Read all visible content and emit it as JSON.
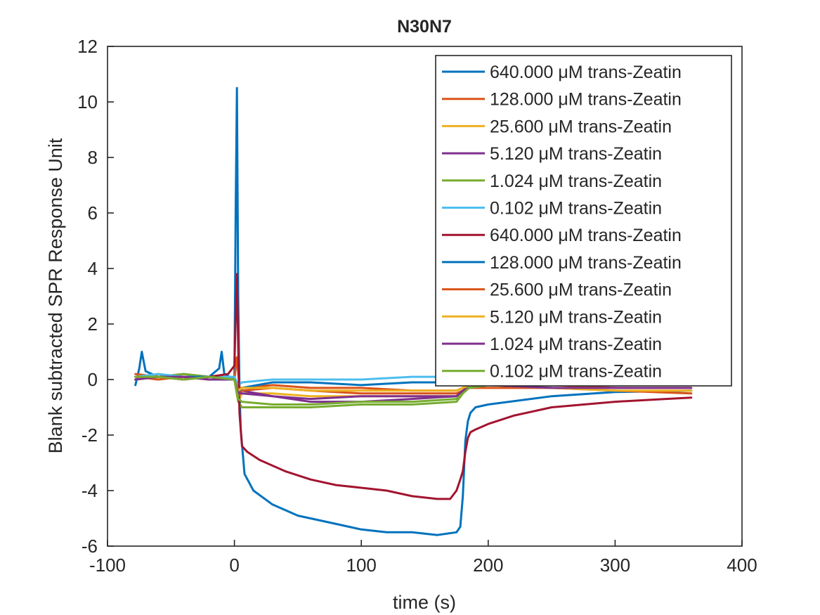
{
  "chart_data": {
    "type": "line",
    "title": "N30N7",
    "xlabel": "time (s)",
    "ylabel": "Blank subtracted SPR Response Unit",
    "xlim": [
      -100,
      400
    ],
    "ylim": [
      -6,
      12
    ],
    "xticks": [
      -100,
      0,
      100,
      200,
      300,
      400
    ],
    "yticks": [
      -6,
      -4,
      -2,
      0,
      2,
      4,
      6,
      8,
      10,
      12
    ],
    "xtick_labels": [
      "-100",
      "0",
      "100",
      "200",
      "300",
      "400"
    ],
    "ytick_labels": [
      "-6",
      "-4",
      "-2",
      "0",
      "2",
      "4",
      "6",
      "8",
      "10",
      "12"
    ],
    "grid": false,
    "legend_position": "top-right",
    "series": [
      {
        "name": "640.000 μM trans-Zeatin",
        "color": "#0072BD",
        "x": [
          -78,
          -75,
          -73,
          -70,
          -60,
          -40,
          -20,
          -12,
          -10,
          -8,
          0,
          1,
          2,
          3,
          4,
          5,
          8,
          15,
          30,
          50,
          80,
          100,
          120,
          140,
          160,
          175,
          178,
          180,
          182,
          184,
          186,
          190,
          200,
          250,
          300,
          360
        ],
        "y": [
          -0.2,
          0.4,
          1.0,
          0.3,
          0.1,
          0.0,
          0.1,
          0.4,
          1.0,
          0.2,
          0.0,
          6.0,
          10.5,
          3.0,
          -0.3,
          -1.8,
          -3.4,
          -4.0,
          -4.5,
          -4.9,
          -5.2,
          -5.4,
          -5.5,
          -5.5,
          -5.6,
          -5.5,
          -5.3,
          -4.2,
          -2.2,
          -1.5,
          -1.2,
          -1.0,
          -0.9,
          -0.6,
          -0.45,
          -0.4
        ]
      },
      {
        "name": "128.000 μM trans-Zeatin",
        "color": "#D95319",
        "x": [
          -78,
          -60,
          -40,
          -20,
          0,
          2,
          4,
          8,
          30,
          60,
          100,
          140,
          175,
          180,
          185,
          200,
          250,
          300,
          360
        ],
        "y": [
          0.2,
          0.1,
          0.2,
          0.1,
          0.0,
          0.8,
          -0.3,
          -0.3,
          -0.2,
          -0.3,
          -0.3,
          -0.4,
          -0.4,
          -0.3,
          -0.2,
          -0.2,
          -0.2,
          -0.3,
          -0.3
        ]
      },
      {
        "name": "25.600 μM trans-Zeatin",
        "color": "#EDB120",
        "x": [
          -78,
          -60,
          -40,
          -20,
          0,
          3,
          6,
          30,
          60,
          100,
          140,
          175,
          180,
          185,
          200,
          250,
          300,
          360
        ],
        "y": [
          0.1,
          0.2,
          0.1,
          0.1,
          0.0,
          -0.8,
          -0.5,
          -0.5,
          -0.6,
          -0.6,
          -0.6,
          -0.6,
          -0.4,
          -0.2,
          -0.1,
          -0.1,
          -0.2,
          -0.1
        ]
      },
      {
        "name": "5.120 μM trans-Zeatin",
        "color": "#7E2F8E",
        "x": [
          -78,
          -60,
          -40,
          -20,
          0,
          3,
          6,
          30,
          60,
          100,
          140,
          175,
          180,
          185,
          200,
          250,
          300,
          360
        ],
        "y": [
          0.0,
          0.1,
          0.1,
          0.0,
          0.0,
          -0.3,
          -0.4,
          -0.6,
          -0.8,
          -0.8,
          -0.7,
          -0.6,
          -0.4,
          -0.2,
          -0.1,
          -0.1,
          -0.1,
          -0.1
        ]
      },
      {
        "name": "1.024 μM trans-Zeatin",
        "color": "#77AC30",
        "x": [
          -78,
          -60,
          -40,
          -20,
          0,
          3,
          6,
          30,
          60,
          100,
          140,
          175,
          180,
          185,
          200,
          250,
          300,
          360
        ],
        "y": [
          0.1,
          0.1,
          0.2,
          0.1,
          0.0,
          -0.8,
          -1.0,
          -1.0,
          -1.0,
          -0.9,
          -0.9,
          -0.8,
          -0.5,
          -0.2,
          -0.1,
          -0.1,
          -0.2,
          -0.2
        ]
      },
      {
        "name": "0.102 μM trans-Zeatin",
        "color": "#4DBEEE",
        "x": [
          -78,
          -60,
          -40,
          -20,
          0,
          3,
          6,
          30,
          60,
          100,
          140,
          175,
          180,
          185,
          200,
          250,
          300,
          360
        ],
        "y": [
          0.1,
          0.2,
          0.1,
          0.1,
          0.1,
          -0.2,
          -0.1,
          0.0,
          0.0,
          0.0,
          0.1,
          0.1,
          0.1,
          0.0,
          0.0,
          0.0,
          -0.1,
          -0.1
        ]
      },
      {
        "name": "640.000 μM trans-Zeatin",
        "color": "#A2142F",
        "x": [
          -78,
          -60,
          -40,
          -20,
          -5,
          0,
          1,
          2,
          3,
          4,
          6,
          10,
          20,
          40,
          60,
          80,
          100,
          120,
          140,
          160,
          170,
          175,
          178,
          180,
          182,
          184,
          186,
          190,
          200,
          220,
          250,
          300,
          340,
          360
        ],
        "y": [
          0.0,
          0.1,
          0.0,
          0.1,
          0.2,
          0.5,
          2.2,
          3.8,
          1.2,
          -1.2,
          -2.4,
          -2.6,
          -2.9,
          -3.3,
          -3.6,
          -3.8,
          -3.9,
          -4.0,
          -4.2,
          -4.3,
          -4.3,
          -4.0,
          -3.6,
          -3.3,
          -2.6,
          -2.1,
          -1.9,
          -1.8,
          -1.6,
          -1.3,
          -1.0,
          -0.8,
          -0.7,
          -0.65
        ]
      },
      {
        "name": "128.000 μM trans-Zeatin",
        "color": "#0072BD",
        "x": [
          -78,
          -60,
          -40,
          -20,
          0,
          3,
          6,
          30,
          60,
          100,
          140,
          175,
          180,
          185,
          200,
          250,
          300,
          360
        ],
        "y": [
          0.0,
          0.1,
          0.1,
          0.1,
          0.0,
          -0.5,
          -0.3,
          -0.1,
          -0.1,
          -0.2,
          -0.1,
          -0.1,
          0.0,
          0.0,
          0.0,
          -0.1,
          -0.1,
          -0.1
        ]
      },
      {
        "name": "25.600 μM trans-Zeatin",
        "color": "#D95319",
        "x": [
          -78,
          -60,
          -40,
          -20,
          0,
          3,
          6,
          30,
          60,
          100,
          140,
          175,
          180,
          185,
          200,
          250,
          300,
          360
        ],
        "y": [
          0.1,
          0.0,
          0.1,
          0.0,
          0.0,
          -0.6,
          -0.4,
          -0.3,
          -0.4,
          -0.5,
          -0.5,
          -0.5,
          -0.4,
          -0.3,
          -0.3,
          -0.3,
          -0.4,
          -0.5
        ]
      },
      {
        "name": "5.120 μM trans-Zeatin",
        "color": "#EDB120",
        "x": [
          -78,
          -60,
          -40,
          -20,
          0,
          3,
          6,
          30,
          60,
          100,
          140,
          175,
          180,
          185,
          200,
          250,
          300,
          360
        ],
        "y": [
          0.0,
          0.1,
          0.0,
          0.1,
          0.0,
          -0.4,
          -0.3,
          -0.3,
          -0.4,
          -0.4,
          -0.4,
          -0.4,
          -0.3,
          -0.2,
          -0.2,
          -0.3,
          -0.4,
          -0.4
        ]
      },
      {
        "name": "1.024 μM trans-Zeatin",
        "color": "#7E2F8E",
        "x": [
          -78,
          -60,
          -40,
          -20,
          0,
          3,
          6,
          30,
          60,
          100,
          140,
          175,
          180,
          185,
          200,
          250,
          300,
          360
        ],
        "y": [
          0.0,
          0.1,
          0.1,
          0.0,
          0.0,
          -0.5,
          -0.5,
          -0.6,
          -0.7,
          -0.6,
          -0.6,
          -0.6,
          -0.4,
          -0.3,
          -0.2,
          -0.3,
          -0.3,
          -0.3
        ]
      },
      {
        "name": "0.102 μM trans-Zeatin",
        "color": "#77AC30",
        "x": [
          -78,
          -60,
          -40,
          -20,
          0,
          3,
          6,
          30,
          60,
          100,
          140,
          175,
          180,
          185,
          200,
          250,
          300,
          360
        ],
        "y": [
          0.1,
          0.1,
          0.0,
          0.1,
          0.0,
          -0.7,
          -0.8,
          -0.9,
          -0.9,
          -0.8,
          -0.8,
          -0.7,
          -0.5,
          -0.3,
          -0.2,
          -0.2,
          -0.2,
          -0.2
        ]
      }
    ]
  }
}
